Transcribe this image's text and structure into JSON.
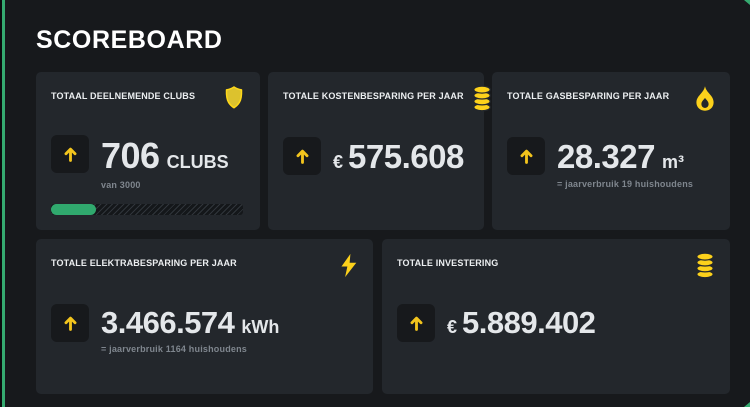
{
  "page": {
    "title": "SCOREBOARD"
  },
  "colors": {
    "background": "#17191c",
    "card": "#23272c",
    "accent_yellow": "#fcd11b",
    "arrow_yellow": "#f2c41d",
    "progress_green": "#30a96e",
    "edge_green": "#35aa70",
    "value_text": "#e4e7ea",
    "muted_text": "#7f868e"
  },
  "cards": [
    {
      "title": "TOTAAL DEELNEMENDE CLUBS",
      "icon": "shield-icon",
      "trend": "up",
      "value": "706",
      "unit": "CLUBS",
      "subtext": "van 3000",
      "progress": {
        "current": 706,
        "max": 3000
      }
    },
    {
      "title": "TOTALE KOSTENBESPARING PER JAAR",
      "icon": "coins-icon",
      "trend": "up",
      "prefix": "€",
      "value": "575.608"
    },
    {
      "title": "TOTALE GASBESPARING PER JAAR",
      "icon": "flame-icon",
      "trend": "up",
      "value": "28.327",
      "unit": "m³",
      "subtext": "= jaarverbruik 19 huishoudens"
    },
    {
      "title": "TOTALE ELEKTRABESPARING PER JAAR",
      "icon": "lightning-icon",
      "trend": "up",
      "value": "3.466.574",
      "unit": "kWh",
      "subtext": "= jaarverbruik 1164 huishoudens"
    },
    {
      "title": "TOTALE INVESTERING",
      "icon": "coins-icon",
      "trend": "up",
      "prefix": "€",
      "value": "5.889.402"
    }
  ]
}
